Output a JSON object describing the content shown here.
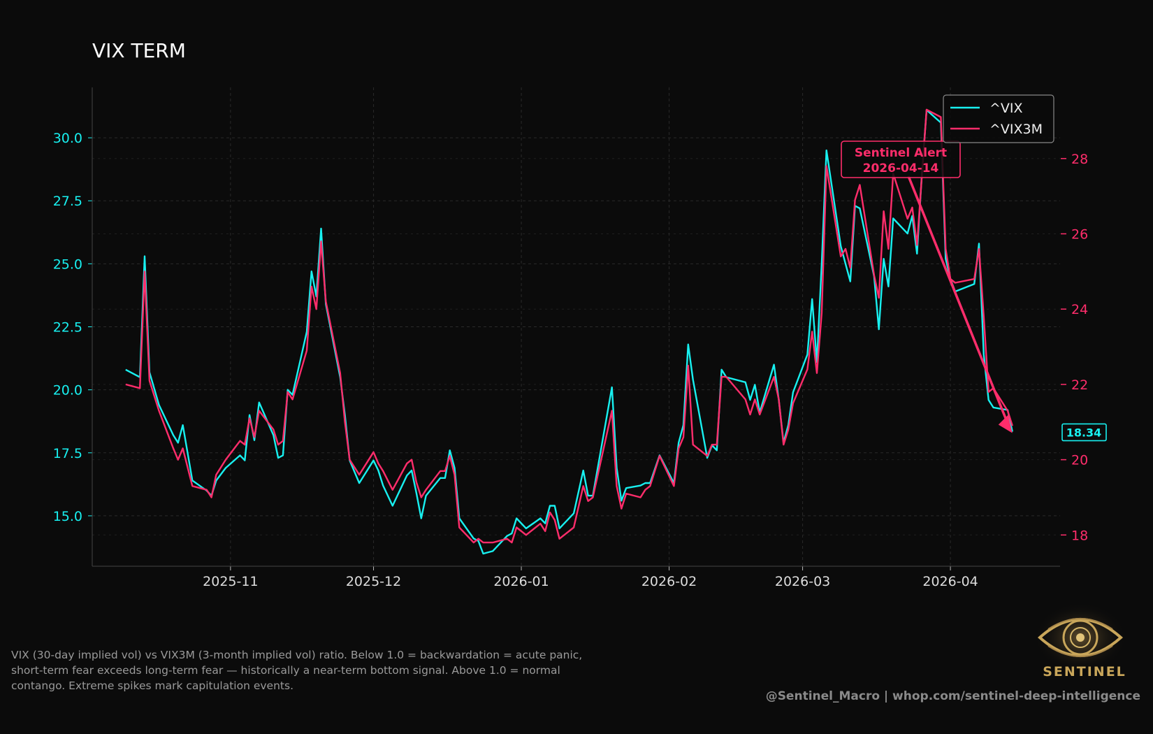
{
  "title": "VIX TERM",
  "description": [
    "VIX (30-day implied vol) vs VIX3M (3-month implied vol) ratio. Below 1.0 = backwardation = acute panic,",
    "short-term fear exceeds long-term fear — historically a near-term bottom signal. Above 1.0 = normal",
    "contango. Extreme spikes mark capitulation events."
  ],
  "footer": "@Sentinel_Macro  |  whop.com/sentinel-deep-intelligence",
  "logo_text": "SENTINEL",
  "colors": {
    "background": "#0b0b0b",
    "vix": "#18f0f0",
    "vix3m": "#ff2d6b",
    "grid": "#2a2a2a",
    "text": "#dddddd"
  },
  "chart_data": {
    "type": "line",
    "x_axis": {
      "type": "date",
      "range": [
        "2025-10-03",
        "2026-04-24"
      ],
      "ticks": [
        "2025-11-01",
        "2025-12-01",
        "2026-01-01",
        "2026-02-01",
        "2026-03-01",
        "2026-04-01"
      ],
      "tick_labels": [
        "2025-11",
        "2025-12",
        "2026-01",
        "2026-02",
        "2026-03",
        "2026-04"
      ]
    },
    "y_left": {
      "range": [
        13.0,
        32.0
      ],
      "ticks": [
        15.0,
        17.5,
        20.0,
        22.5,
        25.0,
        27.5,
        30.0
      ],
      "tick_labels": [
        "15.0",
        "17.5",
        "20.0",
        "22.5",
        "25.0",
        "27.5",
        "30.0"
      ],
      "color": "#18f0f0"
    },
    "y_right": {
      "range": [
        17.17,
        29.89
      ],
      "ticks": [
        18,
        20,
        22,
        24,
        26,
        28
      ],
      "tick_labels": [
        "18",
        "20",
        "22",
        "24",
        "26",
        "28"
      ],
      "color": "#ff2d6b"
    },
    "grid": true,
    "legend": {
      "position": "top-right",
      "entries": [
        "^VIX",
        "^VIX3M"
      ]
    },
    "last_value_label": "18.34",
    "annotation": {
      "text": [
        "Sentinel Alert",
        "2026-04-14"
      ],
      "arrow_to": [
        "2026-04-14",
        18.34
      ]
    },
    "series": [
      {
        "name": "^VIX",
        "axis": "left",
        "color": "#18f0f0",
        "points": [
          [
            "2025-10-10",
            20.8
          ],
          [
            "2025-10-13",
            20.5
          ],
          [
            "2025-10-14",
            25.3
          ],
          [
            "2025-10-15",
            20.7
          ],
          [
            "2025-10-17",
            19.4
          ],
          [
            "2025-10-20",
            18.2
          ],
          [
            "2025-10-21",
            17.9
          ],
          [
            "2025-10-22",
            18.6
          ],
          [
            "2025-10-24",
            16.4
          ],
          [
            "2025-10-27",
            16.0
          ],
          [
            "2025-10-28",
            15.8
          ],
          [
            "2025-10-29",
            16.4
          ],
          [
            "2025-10-31",
            16.9
          ],
          [
            "2025-11-03",
            17.4
          ],
          [
            "2025-11-04",
            17.2
          ],
          [
            "2025-11-05",
            19.0
          ],
          [
            "2025-11-06",
            18.0
          ],
          [
            "2025-11-07",
            19.5
          ],
          [
            "2025-11-10",
            18.2
          ],
          [
            "2025-11-11",
            17.3
          ],
          [
            "2025-11-12",
            17.4
          ],
          [
            "2025-11-13",
            20.0
          ],
          [
            "2025-11-14",
            19.8
          ],
          [
            "2025-11-17",
            22.3
          ],
          [
            "2025-11-18",
            24.7
          ],
          [
            "2025-11-19",
            23.7
          ],
          [
            "2025-11-20",
            26.4
          ],
          [
            "2025-11-21",
            23.4
          ],
          [
            "2025-11-24",
            20.5
          ],
          [
            "2025-11-25",
            19.0
          ],
          [
            "2025-11-26",
            17.2
          ],
          [
            "2025-11-28",
            16.3
          ],
          [
            "2025-12-01",
            17.2
          ],
          [
            "2025-12-02",
            16.8
          ],
          [
            "2025-12-03",
            16.2
          ],
          [
            "2025-12-05",
            15.4
          ],
          [
            "2025-12-08",
            16.6
          ],
          [
            "2025-12-09",
            16.8
          ],
          [
            "2025-12-10",
            15.9
          ],
          [
            "2025-12-11",
            14.9
          ],
          [
            "2025-12-12",
            15.8
          ],
          [
            "2025-12-15",
            16.5
          ],
          [
            "2025-12-16",
            16.5
          ],
          [
            "2025-12-17",
            17.6
          ],
          [
            "2025-12-18",
            16.9
          ],
          [
            "2025-12-19",
            14.9
          ],
          [
            "2025-12-22",
            14.1
          ],
          [
            "2025-12-23",
            14.0
          ],
          [
            "2025-12-24",
            13.5
          ],
          [
            "2025-12-26",
            13.6
          ],
          [
            "2025-12-29",
            14.2
          ],
          [
            "2025-12-30",
            14.3
          ],
          [
            "2025-12-31",
            14.9
          ],
          [
            "2026-01-02",
            14.5
          ],
          [
            "2026-01-05",
            14.9
          ],
          [
            "2026-01-06",
            14.7
          ],
          [
            "2026-01-07",
            15.4
          ],
          [
            "2026-01-08",
            15.4
          ],
          [
            "2026-01-09",
            14.5
          ],
          [
            "2026-01-12",
            15.1
          ],
          [
            "2026-01-14",
            16.8
          ],
          [
            "2026-01-15",
            15.8
          ],
          [
            "2026-01-16",
            15.8
          ],
          [
            "2026-01-20",
            20.1
          ],
          [
            "2026-01-21",
            16.9
          ],
          [
            "2026-01-22",
            15.6
          ],
          [
            "2026-01-23",
            16.1
          ],
          [
            "2026-01-26",
            16.2
          ],
          [
            "2026-01-27",
            16.3
          ],
          [
            "2026-01-28",
            16.3
          ],
          [
            "2026-01-30",
            17.4
          ],
          [
            "2026-02-02",
            16.3
          ],
          [
            "2026-02-03",
            17.9
          ],
          [
            "2026-02-04",
            18.6
          ],
          [
            "2026-02-05",
            21.8
          ],
          [
            "2026-02-06",
            20.4
          ],
          [
            "2026-02-09",
            17.3
          ],
          [
            "2026-02-10",
            17.8
          ],
          [
            "2026-02-11",
            17.6
          ],
          [
            "2026-02-12",
            20.8
          ],
          [
            "2026-02-13",
            20.5
          ],
          [
            "2026-02-17",
            20.3
          ],
          [
            "2026-02-18",
            19.6
          ],
          [
            "2026-02-19",
            20.2
          ],
          [
            "2026-02-20",
            19.1
          ],
          [
            "2026-02-23",
            21.0
          ],
          [
            "2026-02-24",
            19.6
          ],
          [
            "2026-02-25",
            17.9
          ],
          [
            "2026-02-26",
            18.6
          ],
          [
            "2026-02-27",
            19.9
          ],
          [
            "2026-03-02",
            21.4
          ],
          [
            "2026-03-03",
            23.6
          ],
          [
            "2026-03-04",
            21.1
          ],
          [
            "2026-03-05",
            25.0
          ],
          [
            "2026-03-06",
            29.5
          ],
          [
            "2026-03-09",
            25.7
          ],
          [
            "2026-03-10",
            25.0
          ],
          [
            "2026-03-11",
            24.3
          ],
          [
            "2026-03-12",
            27.3
          ],
          [
            "2026-03-13",
            27.2
          ],
          [
            "2026-03-16",
            24.5
          ],
          [
            "2026-03-17",
            22.4
          ],
          [
            "2026-03-18",
            25.2
          ],
          [
            "2026-03-19",
            24.1
          ],
          [
            "2026-03-20",
            26.8
          ],
          [
            "2026-03-23",
            26.2
          ],
          [
            "2026-03-24",
            26.9
          ],
          [
            "2026-03-25",
            25.4
          ],
          [
            "2026-03-26",
            28.5
          ],
          [
            "2026-03-27",
            31.1
          ],
          [
            "2026-03-30",
            30.6
          ],
          [
            "2026-03-31",
            25.2
          ],
          [
            "2026-04-01",
            24.4
          ],
          [
            "2026-04-02",
            23.9
          ],
          [
            "2026-04-06",
            24.2
          ],
          [
            "2026-04-07",
            25.8
          ],
          [
            "2026-04-08",
            21.4
          ],
          [
            "2026-04-09",
            19.6
          ],
          [
            "2026-04-10",
            19.3
          ],
          [
            "2026-04-13",
            19.2
          ],
          [
            "2026-04-14",
            18.34
          ]
        ]
      },
      {
        "name": "^VIX3M",
        "axis": "right",
        "color": "#ff2d6b",
        "points": [
          [
            "2025-10-10",
            22.0
          ],
          [
            "2025-10-13",
            21.9
          ],
          [
            "2025-10-14",
            25.0
          ],
          [
            "2025-10-15",
            22.1
          ],
          [
            "2025-10-17",
            21.3
          ],
          [
            "2025-10-20",
            20.3
          ],
          [
            "2025-10-21",
            20.0
          ],
          [
            "2025-10-22",
            20.3
          ],
          [
            "2025-10-24",
            19.3
          ],
          [
            "2025-10-27",
            19.2
          ],
          [
            "2025-10-28",
            19.0
          ],
          [
            "2025-10-29",
            19.6
          ],
          [
            "2025-10-31",
            20.0
          ],
          [
            "2025-11-03",
            20.5
          ],
          [
            "2025-11-04",
            20.4
          ],
          [
            "2025-11-05",
            21.1
          ],
          [
            "2025-11-06",
            20.6
          ],
          [
            "2025-11-07",
            21.3
          ],
          [
            "2025-11-10",
            20.8
          ],
          [
            "2025-11-11",
            20.4
          ],
          [
            "2025-11-12",
            20.5
          ],
          [
            "2025-11-13",
            21.8
          ],
          [
            "2025-11-14",
            21.6
          ],
          [
            "2025-11-17",
            22.9
          ],
          [
            "2025-11-18",
            24.6
          ],
          [
            "2025-11-19",
            24.0
          ],
          [
            "2025-11-20",
            25.8
          ],
          [
            "2025-11-21",
            24.2
          ],
          [
            "2025-11-24",
            22.3
          ],
          [
            "2025-11-25",
            21.0
          ],
          [
            "2025-11-26",
            20.0
          ],
          [
            "2025-11-28",
            19.6
          ],
          [
            "2025-12-01",
            20.2
          ],
          [
            "2025-12-02",
            19.9
          ],
          [
            "2025-12-03",
            19.7
          ],
          [
            "2025-12-05",
            19.2
          ],
          [
            "2025-12-08",
            19.9
          ],
          [
            "2025-12-09",
            20.0
          ],
          [
            "2025-12-10",
            19.4
          ],
          [
            "2025-12-11",
            19.0
          ],
          [
            "2025-12-12",
            19.2
          ],
          [
            "2025-12-15",
            19.7
          ],
          [
            "2025-12-16",
            19.7
          ],
          [
            "2025-12-17",
            20.1
          ],
          [
            "2025-12-18",
            19.6
          ],
          [
            "2025-12-19",
            18.2
          ],
          [
            "2025-12-22",
            17.8
          ],
          [
            "2025-12-23",
            17.9
          ],
          [
            "2025-12-24",
            17.8
          ],
          [
            "2025-12-26",
            17.8
          ],
          [
            "2025-12-29",
            17.9
          ],
          [
            "2025-12-30",
            17.8
          ],
          [
            "2025-12-31",
            18.2
          ],
          [
            "2026-01-02",
            18.0
          ],
          [
            "2026-01-05",
            18.3
          ],
          [
            "2026-01-06",
            18.1
          ],
          [
            "2026-01-07",
            18.6
          ],
          [
            "2026-01-08",
            18.4
          ],
          [
            "2026-01-09",
            17.9
          ],
          [
            "2026-01-12",
            18.2
          ],
          [
            "2026-01-14",
            19.3
          ],
          [
            "2026-01-15",
            18.9
          ],
          [
            "2026-01-16",
            19.0
          ],
          [
            "2026-01-20",
            21.3
          ],
          [
            "2026-01-21",
            19.3
          ],
          [
            "2026-01-22",
            18.7
          ],
          [
            "2026-01-23",
            19.1
          ],
          [
            "2026-01-26",
            19.0
          ],
          [
            "2026-01-27",
            19.2
          ],
          [
            "2026-01-28",
            19.3
          ],
          [
            "2026-01-30",
            20.1
          ],
          [
            "2026-02-02",
            19.3
          ],
          [
            "2026-02-03",
            20.3
          ],
          [
            "2026-02-04",
            20.6
          ],
          [
            "2026-02-05",
            22.5
          ],
          [
            "2026-02-06",
            20.4
          ],
          [
            "2026-02-09",
            20.1
          ],
          [
            "2026-02-10",
            20.4
          ],
          [
            "2026-02-11",
            20.4
          ],
          [
            "2026-02-12",
            22.2
          ],
          [
            "2026-02-13",
            22.2
          ],
          [
            "2026-02-17",
            21.6
          ],
          [
            "2026-02-18",
            21.2
          ],
          [
            "2026-02-19",
            21.6
          ],
          [
            "2026-02-20",
            21.2
          ],
          [
            "2026-02-23",
            22.2
          ],
          [
            "2026-02-24",
            21.6
          ],
          [
            "2026-02-25",
            20.4
          ],
          [
            "2026-02-26",
            20.8
          ],
          [
            "2026-02-27",
            21.5
          ],
          [
            "2026-03-02",
            22.4
          ],
          [
            "2026-03-03",
            23.4
          ],
          [
            "2026-03-04",
            22.3
          ],
          [
            "2026-03-05",
            23.9
          ],
          [
            "2026-03-06",
            27.8
          ],
          [
            "2026-03-09",
            25.4
          ],
          [
            "2026-03-10",
            25.6
          ],
          [
            "2026-03-11",
            25.1
          ],
          [
            "2026-03-12",
            26.9
          ],
          [
            "2026-03-13",
            27.3
          ],
          [
            "2026-03-16",
            24.9
          ],
          [
            "2026-03-17",
            24.3
          ],
          [
            "2026-03-18",
            26.6
          ],
          [
            "2026-03-19",
            25.6
          ],
          [
            "2026-03-20",
            27.6
          ],
          [
            "2026-03-23",
            26.4
          ],
          [
            "2026-03-24",
            26.7
          ],
          [
            "2026-03-25",
            25.7
          ],
          [
            "2026-03-26",
            27.5
          ],
          [
            "2026-03-27",
            29.3
          ],
          [
            "2026-03-30",
            29.1
          ],
          [
            "2026-03-31",
            25.6
          ],
          [
            "2026-04-01",
            24.8
          ],
          [
            "2026-04-02",
            24.7
          ],
          [
            "2026-04-06",
            24.8
          ],
          [
            "2026-04-07",
            25.6
          ],
          [
            "2026-04-08",
            23.8
          ],
          [
            "2026-04-09",
            21.8
          ],
          [
            "2026-04-10",
            21.9
          ],
          [
            "2026-04-13",
            21.3
          ],
          [
            "2026-04-14",
            20.9
          ]
        ]
      }
    ]
  }
}
